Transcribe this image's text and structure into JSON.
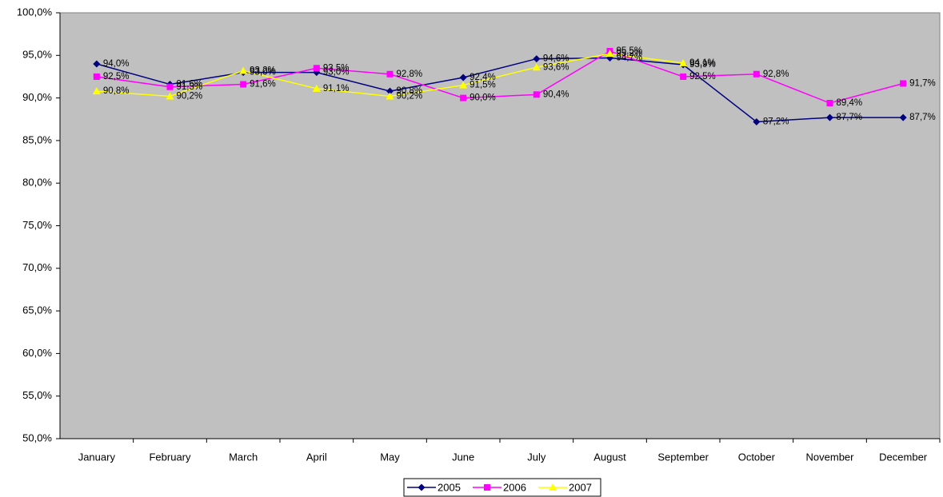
{
  "chart_data": {
    "type": "line",
    "categories": [
      "January",
      "February",
      "March",
      "April",
      "May",
      "June",
      "July",
      "August",
      "September",
      "October",
      "November",
      "December"
    ],
    "series": [
      {
        "name": "2005",
        "color": "#000080",
        "marker": "diamond",
        "values": [
          94.0,
          91.6,
          93.0,
          93.0,
          90.8,
          92.4,
          94.6,
          94.7,
          93.9,
          87.2,
          87.7,
          87.7
        ],
        "value_labels": [
          "94,0%",
          "91,6%",
          "93,0%",
          "93,0%",
          "90,8%",
          "92,4%",
          "94,6%",
          "94,7%",
          "93,9%",
          "87,2%",
          "87,7%",
          "87,7%"
        ]
      },
      {
        "name": "2006",
        "color": "#FF00FF",
        "marker": "square",
        "values": [
          92.5,
          91.3,
          91.6,
          93.5,
          92.8,
          90.0,
          90.4,
          95.5,
          92.5,
          92.8,
          89.4,
          91.7
        ],
        "value_labels": [
          "92,5%",
          "91,3%",
          "91,6%",
          "93,5%",
          "92,8%",
          "90,0%",
          "90,4%",
          "95,5%",
          "92,5%",
          "92,8%",
          "89,4%",
          "91,7%"
        ]
      },
      {
        "name": "2007",
        "color": "#FFFF00",
        "marker": "triangle",
        "values": [
          90.8,
          90.2,
          93.2,
          91.1,
          90.2,
          91.5,
          93.6,
          95.2,
          94.1,
          null,
          null,
          null
        ],
        "value_labels": [
          "90,8%",
          "90,2%",
          "93,2%",
          "91,1%",
          "90,2%",
          "91,5%",
          "93,6%",
          "95,2%",
          "94,1%",
          null,
          null,
          null
        ]
      }
    ],
    "ylim": [
      50,
      100
    ],
    "yticks": [
      {
        "value": 50,
        "label": "50,0%"
      },
      {
        "value": 55,
        "label": "55,0%"
      },
      {
        "value": 60,
        "label": "60,0%"
      },
      {
        "value": 65,
        "label": "65,0%"
      },
      {
        "value": 70,
        "label": "70,0%"
      },
      {
        "value": 75,
        "label": "75,0%"
      },
      {
        "value": 80,
        "label": "80,0%"
      },
      {
        "value": 85,
        "label": "85,0%"
      },
      {
        "value": 90,
        "label": "90,0%"
      },
      {
        "value": 95,
        "label": "95,0%"
      },
      {
        "value": 100,
        "label": "100,0%"
      }
    ],
    "legend": "bottom",
    "plot_background": "#C0C0C0"
  }
}
